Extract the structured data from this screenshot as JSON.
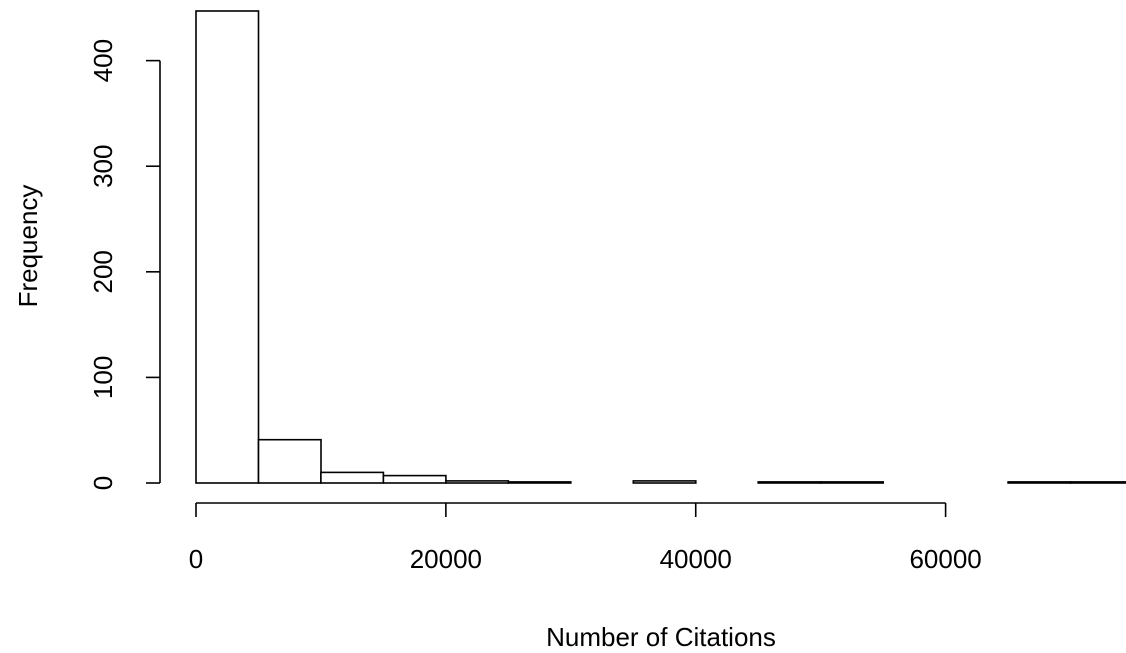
{
  "chart_data": {
    "type": "bar",
    "title": "",
    "xlabel": "Number of Citations",
    "ylabel": "Frequency",
    "bin_width": 5000,
    "bin_starts": [
      0,
      5000,
      10000,
      15000,
      20000,
      25000,
      30000,
      35000,
      40000,
      45000,
      50000,
      55000,
      60000,
      65000,
      70000
    ],
    "values": [
      447,
      41,
      10,
      7,
      2,
      1,
      0,
      2,
      0,
      1,
      1,
      0,
      0,
      1,
      1
    ],
    "xlim": [
      0,
      75000
    ],
    "ylim": [
      0,
      447
    ],
    "x_ticks": [
      0,
      20000,
      40000,
      60000
    ],
    "x_tick_labels": [
      "0",
      "20000",
      "40000",
      "60000"
    ],
    "y_ticks": [
      0,
      100,
      200,
      300,
      400
    ],
    "y_tick_labels": [
      "0",
      "100",
      "200",
      "300",
      "400"
    ],
    "grid": false,
    "legend": "none",
    "bar_fill": "#ffffff",
    "bar_stroke": "#000000"
  }
}
